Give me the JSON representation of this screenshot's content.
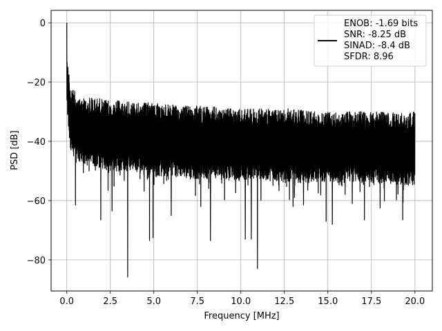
{
  "chart_data": {
    "type": "line",
    "title": "",
    "xlabel": "Frequency [MHz]",
    "ylabel": "PSD [dB]",
    "xlim": [
      -0.9,
      21.0
    ],
    "ylim": [
      -90.5,
      4.2
    ],
    "xticks": [
      0.0,
      2.5,
      5.0,
      7.5,
      10.0,
      12.5,
      15.0,
      17.5,
      20.0
    ],
    "xtick_labels": [
      "0.0",
      "2.5",
      "5.0",
      "7.5",
      "10.0",
      "12.5",
      "15.0",
      "17.5",
      "20.0"
    ],
    "yticks": [
      0,
      -20,
      -40,
      -60,
      -80
    ],
    "ytick_labels": [
      "0",
      "−20",
      "−40",
      "−60",
      "−80"
    ],
    "grid": true,
    "legend_position": "top-right",
    "legend_entries": [
      "ENOB: -1.69 bits",
      "SNR: -8.25 dB",
      "SINAD: -8.4 dB",
      "SFDR: 8.96"
    ],
    "series": [
      {
        "color": "#000000",
        "x_range": [
          0.0,
          20.0
        ],
        "peak": {
          "x": 0.0,
          "y": 0.0
        },
        "upper_envelope_y": [
          -9.5,
          -22,
          -25,
          -26,
          -27,
          -27,
          -28,
          -28,
          -29,
          -29,
          -29,
          -30,
          -30,
          -30
        ],
        "upper_envelope_x": [
          0.02,
          0.2,
          1.0,
          2.5,
          4.0,
          5.0,
          6.5,
          8.0,
          9.5,
          11.0,
          13.0,
          15.0,
          17.5,
          20.0
        ],
        "lower_envelope_y": [
          -30,
          -44,
          -48,
          -50,
          -51,
          -52,
          -52,
          -53,
          -53,
          -53,
          -54,
          -54,
          -54,
          -55
        ],
        "deep_dips": [
          {
            "x": 0.5,
            "y": -61.5
          },
          {
            "x": 1.95,
            "y": -66.5
          },
          {
            "x": 2.6,
            "y": -63.5
          },
          {
            "x": 3.5,
            "y": -85.8
          },
          {
            "x": 4.75,
            "y": -73.5
          },
          {
            "x": 4.95,
            "y": -72.5
          },
          {
            "x": 6.0,
            "y": -65.0
          },
          {
            "x": 7.7,
            "y": -62.0
          },
          {
            "x": 8.25,
            "y": -73.5
          },
          {
            "x": 10.25,
            "y": -73.0
          },
          {
            "x": 10.6,
            "y": -73.0
          },
          {
            "x": 10.95,
            "y": -82.9
          },
          {
            "x": 13.0,
            "y": -62.0
          },
          {
            "x": 13.6,
            "y": -61.5
          },
          {
            "x": 14.9,
            "y": -67.0
          },
          {
            "x": 15.25,
            "y": -68.0
          },
          {
            "x": 16.4,
            "y": -61.0
          },
          {
            "x": 17.1,
            "y": -66.5
          },
          {
            "x": 18.0,
            "y": -62.5
          },
          {
            "x": 19.3,
            "y": -66.5
          }
        ]
      }
    ]
  }
}
